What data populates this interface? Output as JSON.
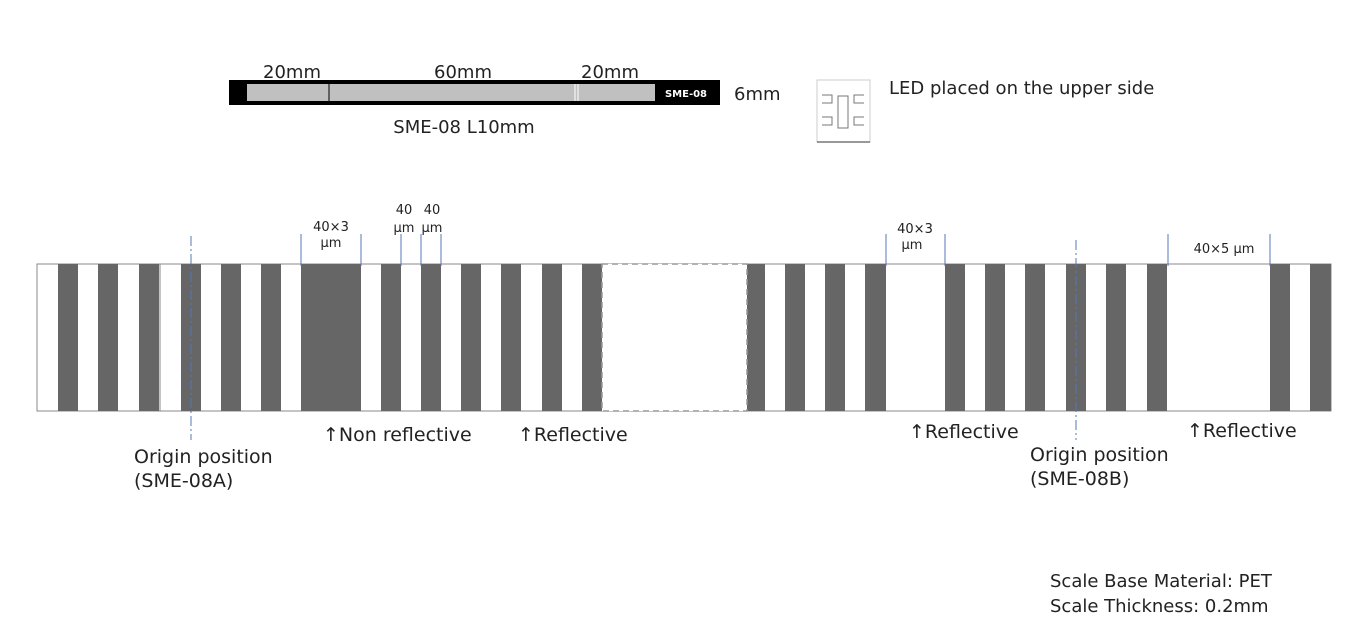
{
  "top_scale": {
    "labels": [
      "20mm",
      "60mm",
      "20mm"
    ],
    "tag": "SME-08",
    "height": "6mm",
    "caption": "SME-08  L10mm"
  },
  "led_note": "LED placed on the upper side",
  "dimensions": [
    {
      "line1": "40×3",
      "line2": "μm"
    },
    {
      "line1": "40",
      "line2": "μm"
    },
    {
      "line1": "40",
      "line2": "μm"
    },
    {
      "line1": "40×3",
      "line2": "μm"
    },
    {
      "line1": "40×5 μm"
    }
  ],
  "annotations": [
    "↑Non reflective",
    "↑Reflective",
    "↑Reflective",
    "↑Reflective"
  ],
  "origins": [
    {
      "line1": "Origin position",
      "line2": "(SME-08A)"
    },
    {
      "line1": "Origin position",
      "line2": "(SME-08B)"
    }
  ],
  "footer": [
    "Scale Base Material: PET",
    "Scale Thickness: 0.2mm"
  ]
}
